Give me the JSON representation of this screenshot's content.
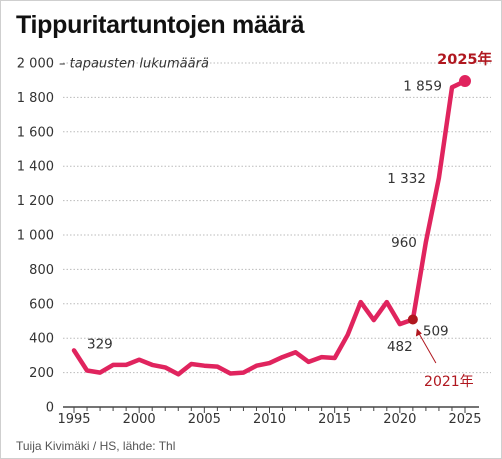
{
  "title": "Tippuritartuntojen määrä",
  "source": "Tuija Kivimäki / HS, lähde: Thl",
  "colors": {
    "line": "#e0245e",
    "marker_2021": "#b0171f",
    "annotation": "#b0171f",
    "grid": "#bbbbbb"
  },
  "chart_data": {
    "type": "line",
    "title": "Tippuritartuntojen määrä",
    "ylabel": "tapausten lukumäärä",
    "xlabel": "",
    "ylim": [
      0,
      2000
    ],
    "xlim": [
      1995,
      2025
    ],
    "yticks": [
      0,
      200,
      400,
      600,
      800,
      1000,
      1200,
      1400,
      1600,
      1800,
      2000
    ],
    "ytick_labels": [
      "0",
      "200",
      "400",
      "600",
      "800",
      "1 000",
      "1 200",
      "1 400",
      "1 600",
      "1 800",
      "2 000"
    ],
    "xticks": [
      1995,
      2000,
      2005,
      2010,
      2015,
      2020,
      2025
    ],
    "xtick_labels": [
      "1995",
      "2000",
      "2005",
      "2010",
      "2015",
      "2020",
      "2025"
    ],
    "grid": true,
    "series": [
      {
        "x": [
          1995,
          1996,
          1997,
          1998,
          1999,
          2000,
          2001,
          2002,
          2003,
          2004,
          2005,
          2006,
          2007,
          2008,
          2009,
          2010,
          2011,
          2012,
          2013,
          2014,
          2015,
          2016,
          2017,
          2018,
          2019,
          2020,
          2021,
          2022,
          2023,
          2024,
          2025
        ],
        "values": [
          329,
          212,
          200,
          245,
          245,
          275,
          245,
          230,
          190,
          250,
          240,
          235,
          195,
          200,
          240,
          255,
          290,
          318,
          262,
          290,
          285,
          420,
          610,
          505,
          610,
          482,
          509,
          960,
          1332,
          1859,
          1895
        ]
      }
    ],
    "data_labels": [
      {
        "x": 1995,
        "text": "329"
      },
      {
        "x": 2020,
        "text": "482"
      },
      {
        "x": 2021,
        "text": "509"
      },
      {
        "x": 2022,
        "text": "960"
      },
      {
        "x": 2023,
        "text": "1 332"
      },
      {
        "x": 2024,
        "text": "1 859"
      }
    ],
    "annotations": [
      {
        "x": 2021,
        "text": "2021年"
      },
      {
        "x": 2025,
        "text": "2025年"
      }
    ]
  }
}
